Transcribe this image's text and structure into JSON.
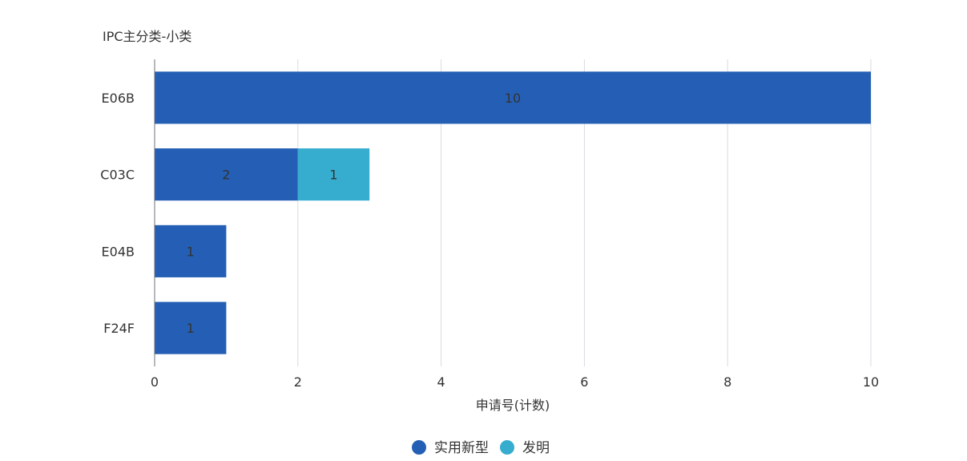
{
  "chart_data": {
    "type": "bar",
    "orientation": "horizontal",
    "stacked": true,
    "ylabel": "IPC主分类-小类",
    "xlabel": "申请号(计数)",
    "categories": [
      "E06B",
      "C03C",
      "E04B",
      "F24F"
    ],
    "series": [
      {
        "name": "实用新型",
        "color": "#245FB5",
        "values": [
          10,
          2,
          1,
          1
        ]
      },
      {
        "name": "发明",
        "color": "#36ADCF",
        "values": [
          0,
          1,
          0,
          0
        ]
      }
    ],
    "xlim": [
      0,
      10
    ],
    "xticks": [
      0,
      2,
      4,
      6,
      8,
      10
    ],
    "grid": true,
    "legend_position": "bottom-center",
    "data_labels": true
  }
}
